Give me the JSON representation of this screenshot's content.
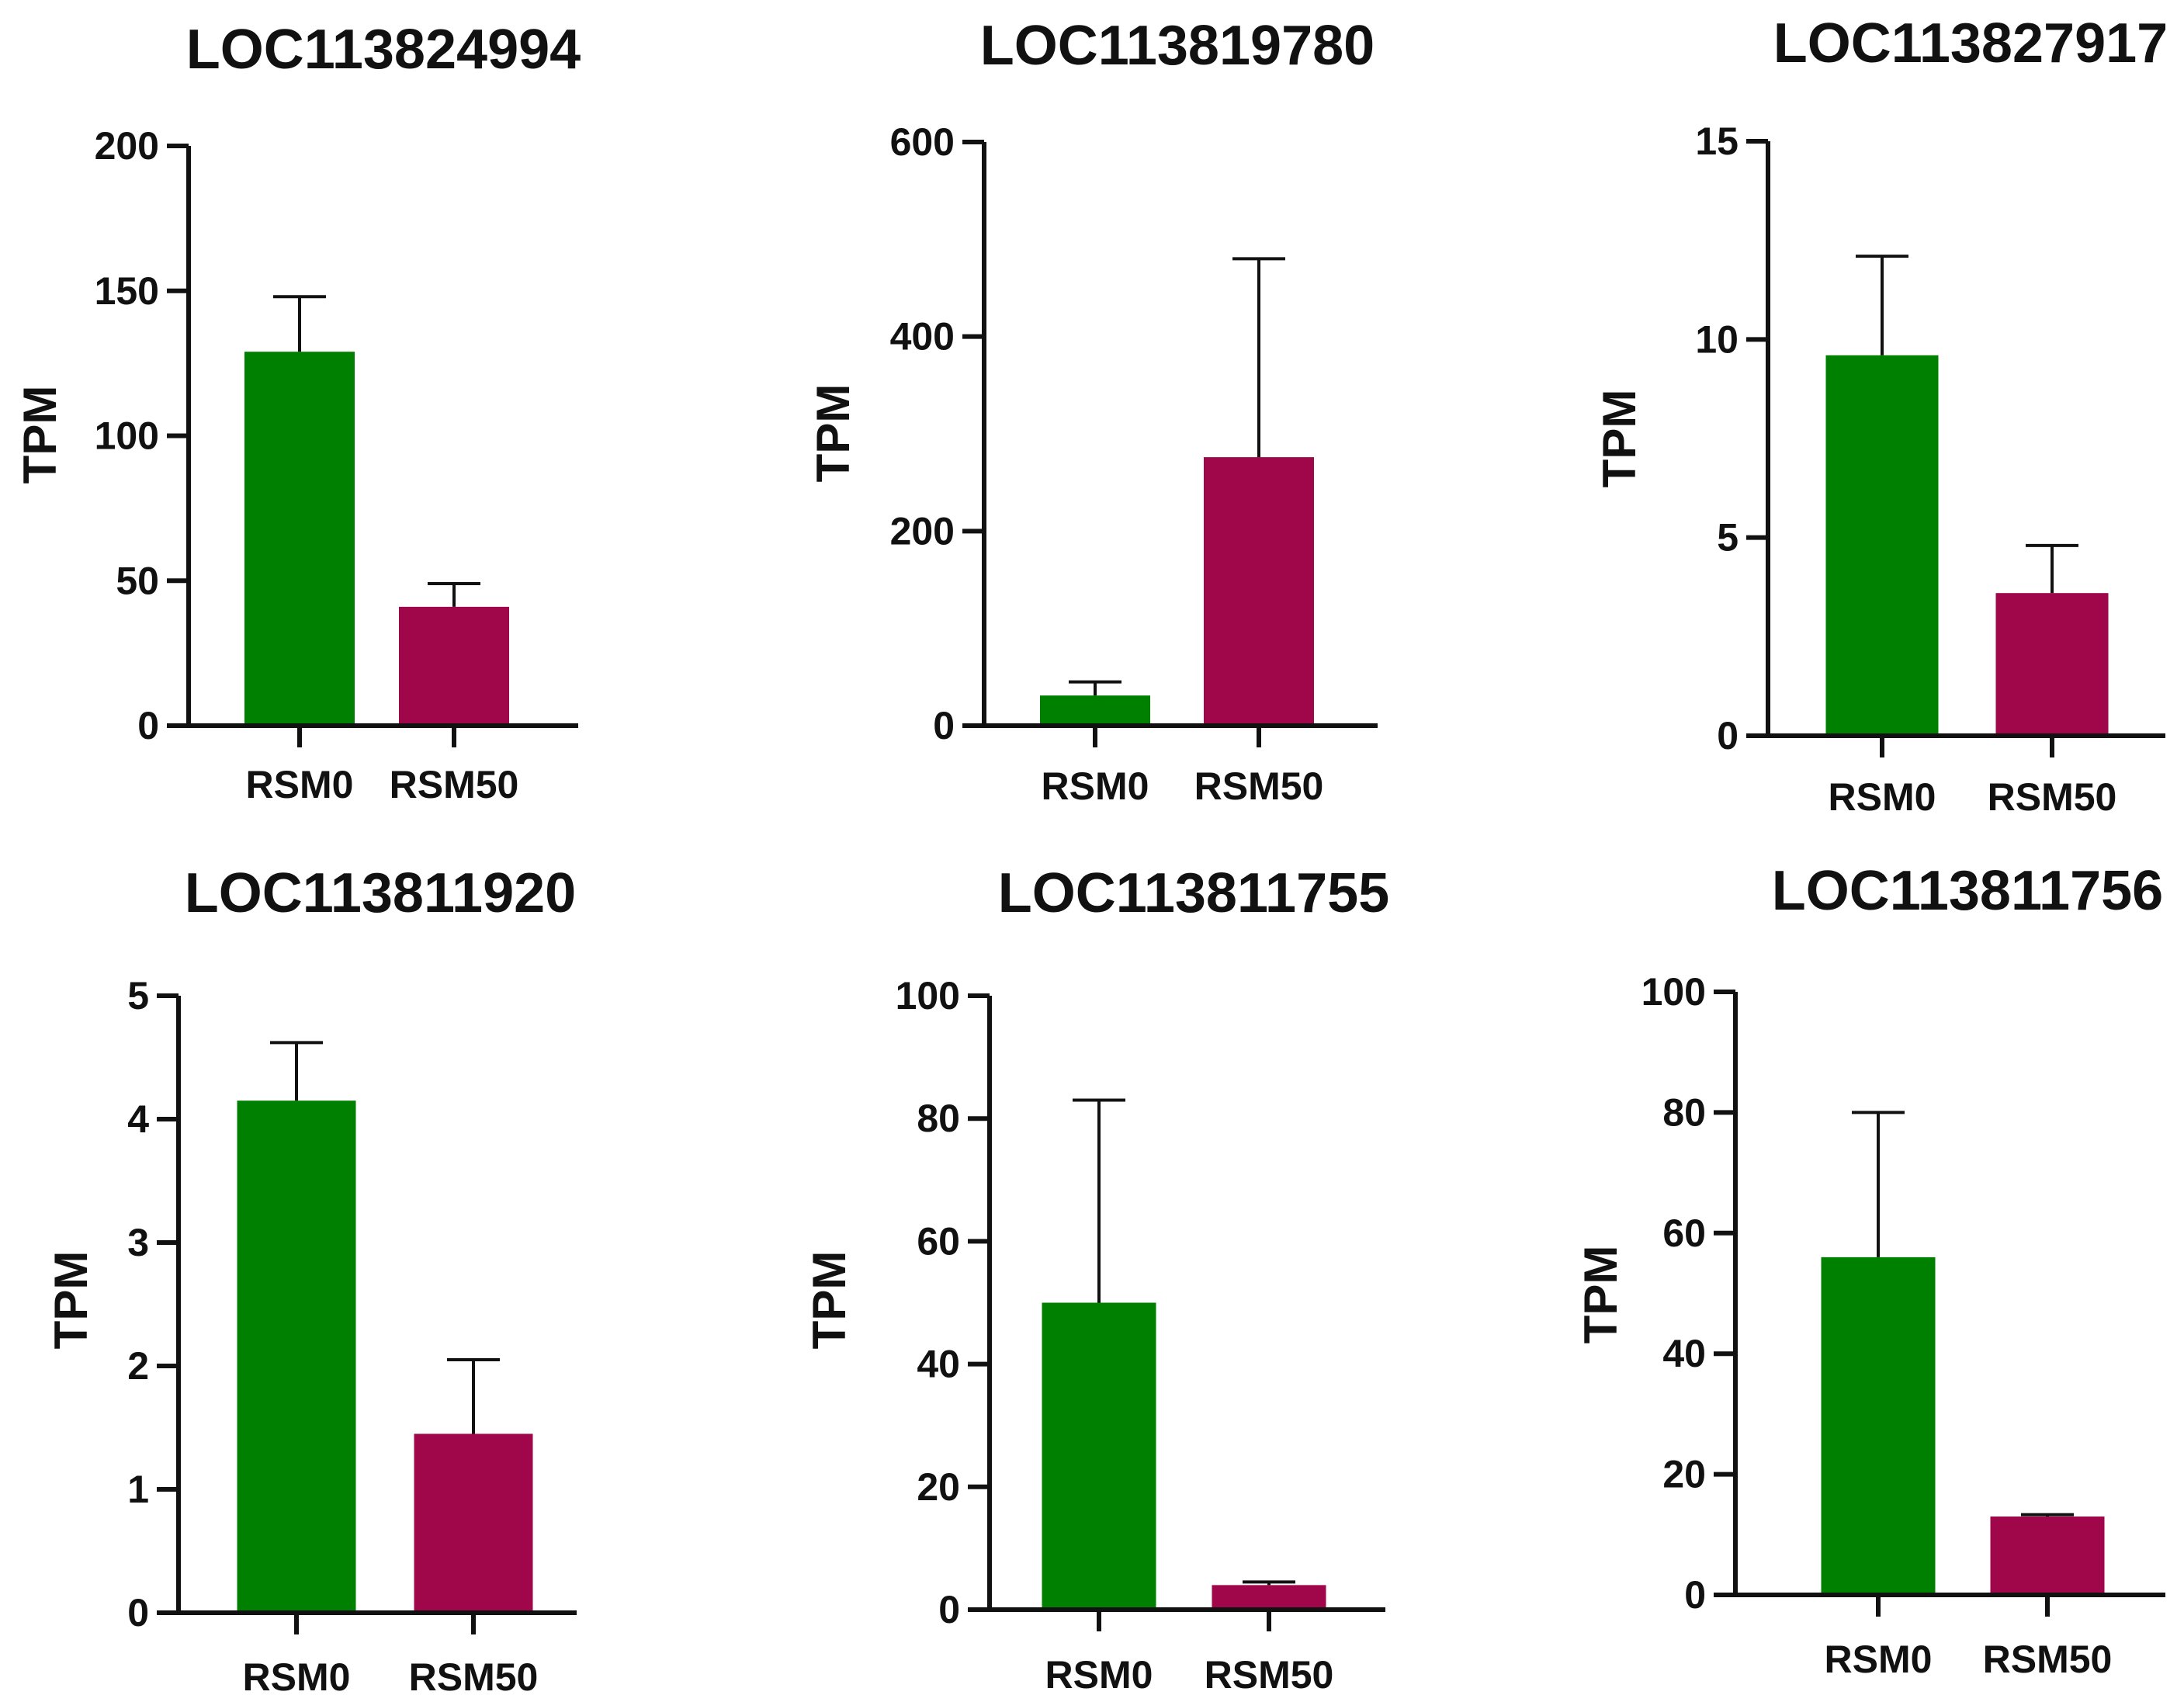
{
  "colors": {
    "RSM0": "#008000",
    "RSM50": "#A0064A",
    "axis": "#111111"
  },
  "chart_data": [
    {
      "type": "bar",
      "title": "LOC113824994",
      "ylabel": "TPM",
      "ylim": [
        0,
        200
      ],
      "yticks": [
        0,
        50,
        100,
        150,
        200
      ],
      "ytick_labels": [
        "0",
        "50",
        "100",
        "150",
        "200"
      ],
      "categories": [
        "RSM0",
        "RSM50"
      ],
      "values": [
        129,
        41
      ],
      "errors": [
        19,
        8
      ]
    },
    {
      "type": "bar",
      "title": "LOC113819780",
      "ylabel": "TPM",
      "ylim": [
        0,
        600
      ],
      "yticks": [
        0,
        200,
        400,
        600
      ],
      "ytick_labels": [
        "0",
        "200",
        "400",
        "600"
      ],
      "categories": [
        "RSM0",
        "RSM50"
      ],
      "values": [
        31,
        276
      ],
      "errors": [
        14,
        204
      ]
    },
    {
      "type": "bar",
      "title": "LOC113827917",
      "ylabel": "TPM",
      "ylim": [
        0,
        15
      ],
      "yticks": [
        0,
        5,
        10,
        15
      ],
      "ytick_labels": [
        "0",
        "5",
        "10",
        "15"
      ],
      "categories": [
        "RSM0",
        "RSM50"
      ],
      "values": [
        9.6,
        3.6
      ],
      "errors": [
        2.5,
        1.2
      ]
    },
    {
      "type": "bar",
      "title": "LOC113811920",
      "ylabel": "TPM",
      "ylim": [
        0,
        5
      ],
      "yticks": [
        0,
        1,
        2,
        3,
        4,
        5
      ],
      "ytick_labels": [
        "0",
        "1",
        "2",
        "3",
        "4",
        "5"
      ],
      "categories": [
        "RSM0",
        "RSM50"
      ],
      "values": [
        4.15,
        1.45
      ],
      "errors": [
        0.47,
        0.6
      ]
    },
    {
      "type": "bar",
      "title": "LOC113811755",
      "ylabel": "TPM",
      "ylim": [
        0,
        100
      ],
      "yticks": [
        0,
        20,
        40,
        60,
        80,
        100
      ],
      "ytick_labels": [
        "0",
        "20",
        "40",
        "60",
        "80",
        "100"
      ],
      "categories": [
        "RSM0",
        "RSM50"
      ],
      "values": [
        50,
        4
      ],
      "errors": [
        33,
        0.5
      ]
    },
    {
      "type": "bar",
      "title": "LOC113811756",
      "ylabel": "TPM",
      "ylim": [
        0,
        100
      ],
      "yticks": [
        0,
        20,
        40,
        60,
        80,
        100
      ],
      "ytick_labels": [
        "0",
        "20",
        "40",
        "60",
        "80",
        "100"
      ],
      "categories": [
        "RSM0",
        "RSM50"
      ],
      "values": [
        56,
        13
      ],
      "errors": [
        24,
        0.3
      ]
    }
  ]
}
